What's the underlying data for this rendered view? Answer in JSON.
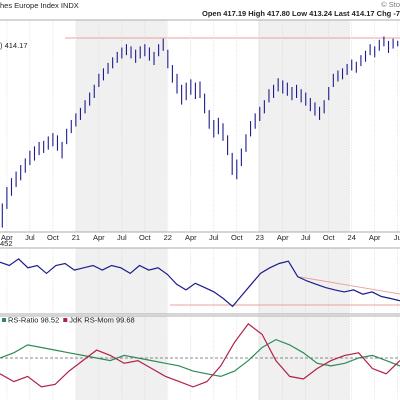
{
  "chart_data": [
    {
      "type": "ohlc",
      "title": "hes Europe Index INDX",
      "subtitle": "Open 417.19 High 417.80 Low 413.24 Last 414.17 Chg -7",
      "credit": "© Sto",
      "legend": ") 414.17",
      "color": "#1c1c8c",
      "grid": true,
      "categories": [
        null,
        "Apr",
        null,
        null,
        null,
        null,
        "Jul",
        null,
        null,
        null,
        null,
        "Oct",
        null,
        null,
        null,
        null,
        "21",
        null,
        null,
        null,
        null,
        "Apr",
        null,
        null,
        null,
        null,
        "Jul",
        null,
        null,
        null,
        null,
        "Oct",
        null,
        null,
        null,
        null,
        "22",
        null,
        null,
        null,
        null,
        "Apr",
        null,
        null,
        null,
        null,
        "Jul",
        null,
        null,
        null,
        null,
        "Oct",
        null,
        null,
        null,
        null,
        "23",
        null,
        null,
        null,
        null,
        "Apr",
        null,
        null,
        null,
        null,
        "Jul",
        null,
        null,
        null,
        null,
        "Oct",
        null,
        null,
        null,
        null,
        "24",
        null,
        null,
        null,
        null,
        "Apr",
        null,
        null,
        null,
        null,
        "Ju"
      ],
      "high": [
        270,
        285,
        293,
        299,
        305,
        311,
        318,
        322,
        326,
        327,
        331,
        334,
        332,
        326,
        338,
        346,
        352,
        357,
        364,
        371,
        378,
        388,
        393,
        398,
        403,
        408,
        412,
        415,
        413,
        410,
        413,
        415,
        412,
        408,
        415,
        420,
        410,
        396,
        388,
        378,
        380,
        383,
        380,
        381,
        370,
        355,
        346,
        348,
        343,
        332,
        316,
        310,
        320,
        333,
        345,
        352,
        358,
        364,
        374,
        378,
        384,
        382,
        380,
        376,
        378,
        374,
        371,
        366,
        362,
        358,
        364,
        376,
        388,
        391,
        393,
        397,
        401,
        399,
        405,
        409,
        415,
        413,
        419,
        422,
        418,
        420,
        418
      ],
      "low": [
        248,
        265,
        277,
        285,
        291,
        298,
        305,
        309,
        314,
        316,
        319,
        322,
        318,
        311,
        324,
        334,
        340,
        346,
        352,
        359,
        366,
        376,
        382,
        388,
        393,
        398,
        402,
        405,
        402,
        398,
        402,
        404,
        400,
        396,
        404,
        409,
        393,
        380,
        370,
        360,
        364,
        369,
        365,
        366,
        352,
        338,
        330,
        333,
        327,
        314,
        296,
        292,
        304,
        317,
        331,
        338,
        345,
        352,
        362,
        366,
        372,
        370,
        368,
        364,
        366,
        362,
        359,
        354,
        350,
        346,
        352,
        364,
        376,
        381,
        383,
        387,
        391,
        389,
        395,
        399,
        405,
        403,
        409,
        413,
        407,
        411,
        413
      ],
      "ylim": [
        244,
        437
      ]
    },
    {
      "type": "line",
      "label": "452",
      "ylim": [
        40,
        60
      ],
      "series": [
        {
          "color": "#1c1c8c",
          "values": [
            55.7,
            54.7,
            56.7,
            54.0,
            54.7,
            52.3,
            54.7,
            55.3,
            53.3,
            54.0,
            54.7,
            53.3,
            54.7,
            54.0,
            52.3,
            54.7,
            53.3,
            54.0,
            52.0,
            49.0,
            47.3,
            49.3,
            48.0,
            46.7,
            44.7,
            42.3,
            45.7,
            49.0,
            52.3,
            54.0,
            55.3,
            56.0,
            51.3,
            50.0,
            49.0,
            48.0,
            47.3,
            46.7,
            47.3,
            46.0,
            46.7,
            45.3,
            44.7,
            44.0
          ]
        }
      ]
    },
    {
      "type": "line",
      "ylim": [
        92,
        108
      ],
      "reference": 100,
      "series": [
        {
          "name": "RS-Ratio 98.52",
          "color": "#2e8b57",
          "values": [
            100.0,
            101.0,
            102.5,
            102.0,
            101.5,
            101.0,
            100.5,
            100.0,
            99.5,
            100.5,
            100.0,
            99.5,
            99.0,
            98.5,
            97.5,
            97.0,
            96.5,
            97.5,
            99.5,
            102.0,
            103.5,
            102.5,
            101.0,
            99.0,
            98.5,
            99.0,
            100.0,
            100.5,
            99.5,
            98.5
          ]
        },
        {
          "name": "JdK RS-Mom 99.68",
          "color": "#b22245",
          "values": [
            97.0,
            95.5,
            96.5,
            94.5,
            95.0,
            97.5,
            99.5,
            101.5,
            100.5,
            99.0,
            99.5,
            98.0,
            96.5,
            95.5,
            94.5,
            95.5,
            98.5,
            103.0,
            106.5,
            104.5,
            99.5,
            96.5,
            96.0,
            98.0,
            99.5,
            100.5,
            101.0,
            98.0,
            97.0,
            99.5
          ]
        }
      ]
    }
  ]
}
